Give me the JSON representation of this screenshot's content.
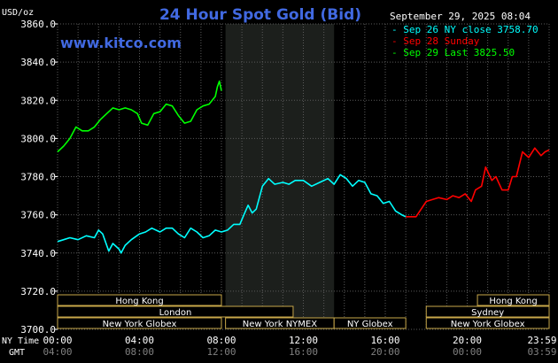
{
  "header": {
    "title": "24 Hour Spot Gold (Bid)",
    "site": "www.kitco.com",
    "datetime": "September 29, 2025 08:04",
    "unit": "USD/oz"
  },
  "legend": [
    {
      "text": "Sep 26 NY close 3758.70",
      "color": "#00ffff"
    },
    {
      "text": "Sep 28 Sunday",
      "color": "#ff0000"
    },
    {
      "text": "Sep 29 Last 3825.50",
      "color": "#00ff00"
    }
  ],
  "axis_labels": {
    "ny_time": "NY Time",
    "gmt": "GMT"
  },
  "sessions": [
    {
      "name": "Hong Kong",
      "start": 0,
      "end": 8
    },
    {
      "name": "London",
      "start": 0,
      "end": 11.5
    },
    {
      "name": "New York Globex",
      "start": 0,
      "end": 8
    },
    {
      "name": "New York NYMEX",
      "start": 8.2,
      "end": 13.5
    },
    {
      "name": "NY Globex",
      "start": 13.5,
      "end": 17
    },
    {
      "name": "Hong Kong",
      "start": 20.5,
      "end": 24
    },
    {
      "name": "Sydney",
      "start": 18,
      "end": 24
    },
    {
      "name": "New York Globex",
      "start": 18,
      "end": 24
    }
  ],
  "chart_data": {
    "type": "line",
    "title": "24 Hour Spot Gold (Bid)",
    "ylabel": "USD/oz",
    "xlim": [
      0,
      24
    ],
    "ylim": [
      3700,
      3860
    ],
    "yticks": [
      3700,
      3720,
      3740,
      3760,
      3780,
      3800,
      3820,
      3840,
      3860
    ],
    "y_tick_labels": [
      "3700.0",
      "3720.0",
      "3740.0",
      "3760.0",
      "3780.0",
      "3800.0",
      "3820.0",
      "3840.0",
      "3860.0"
    ],
    "xticks": [
      0,
      4,
      8,
      12,
      16,
      20,
      24
    ],
    "x_tick_labels_ny": [
      "00:00",
      "04:00",
      "08:00",
      "12:00",
      "16:00",
      "20:00",
      "23:59"
    ],
    "x_tick_labels_gmt": [
      "04:00",
      "08:00",
      "12:00",
      "16:00",
      "20:00",
      "00:00",
      "03:59"
    ],
    "grid": true,
    "shaded_x_range": [
      8.2,
      13.5
    ],
    "series": [
      {
        "name": "Sep 26 NY close 3758.70",
        "color": "#00ffff",
        "x": [
          0,
          0.3,
          0.6,
          1.0,
          1.4,
          1.8,
          2.0,
          2.2,
          2.5,
          2.7,
          3.0,
          3.1,
          3.3,
          3.6,
          4.0,
          4.3,
          4.6,
          5.0,
          5.3,
          5.6,
          5.9,
          6.2,
          6.5,
          6.8,
          7.1,
          7.4,
          7.7,
          8.0,
          8.3,
          8.6,
          8.9,
          9.1,
          9.3,
          9.5,
          9.7,
          10.0,
          10.3,
          10.6,
          11.0,
          11.3,
          11.6,
          12.0,
          12.4,
          12.8,
          13.2,
          13.5,
          13.8,
          14.1,
          14.4,
          14.7,
          15.0,
          15.3,
          15.6,
          15.9,
          16.2,
          16.5,
          16.8,
          17.0
        ],
        "y": [
          3746,
          3747,
          3748,
          3747,
          3749,
          3748,
          3752,
          3750,
          3741,
          3745,
          3742,
          3740,
          3744,
          3747,
          3750,
          3751,
          3753,
          3751,
          3753,
          3753,
          3750,
          3748,
          3753,
          3751,
          3748,
          3749,
          3752,
          3751,
          3752,
          3755,
          3755,
          3760,
          3765,
          3761,
          3763,
          3775,
          3779,
          3776,
          3777,
          3776,
          3778,
          3778,
          3775,
          3777,
          3779,
          3776,
          3781,
          3779,
          3775,
          3778,
          3777,
          3771,
          3770,
          3766,
          3767,
          3762,
          3760,
          3759
        ]
      },
      {
        "name": "Sep 28 Sunday",
        "color": "#ff0000",
        "x": [
          17.0,
          17.5,
          18.0,
          18.3,
          18.6,
          19.0,
          19.3,
          19.6,
          19.9,
          20.2,
          20.4,
          20.7,
          20.9,
          21.2,
          21.4,
          21.7,
          22.0,
          22.2,
          22.4,
          22.7,
          23.0,
          23.3,
          23.6,
          23.8,
          24.0
        ],
        "y": [
          3759,
          3759,
          3767,
          3768,
          3769,
          3768,
          3770,
          3769,
          3771,
          3767,
          3773,
          3775,
          3785,
          3778,
          3780,
          3773,
          3773,
          3780,
          3780,
          3793,
          3790,
          3795,
          3791,
          3793,
          3794
        ]
      },
      {
        "name": "Sep 29 Last 3825.50",
        "color": "#00ff00",
        "x": [
          0,
          0.3,
          0.6,
          0.9,
          1.2,
          1.5,
          1.8,
          2.1,
          2.4,
          2.7,
          3.0,
          3.3,
          3.6,
          3.9,
          4.1,
          4.4,
          4.7,
          5.0,
          5.3,
          5.6,
          5.9,
          6.2,
          6.5,
          6.8,
          7.1,
          7.4,
          7.7,
          7.8,
          7.9,
          8.0
        ],
        "y": [
          3793,
          3796,
          3800,
          3806,
          3804,
          3804,
          3806,
          3810,
          3813,
          3816,
          3815,
          3816,
          3815,
          3813,
          3808,
          3807,
          3813,
          3814,
          3818,
          3817,
          3812,
          3808,
          3809,
          3815,
          3817,
          3818,
          3822,
          3827,
          3830,
          3825
        ]
      }
    ]
  }
}
